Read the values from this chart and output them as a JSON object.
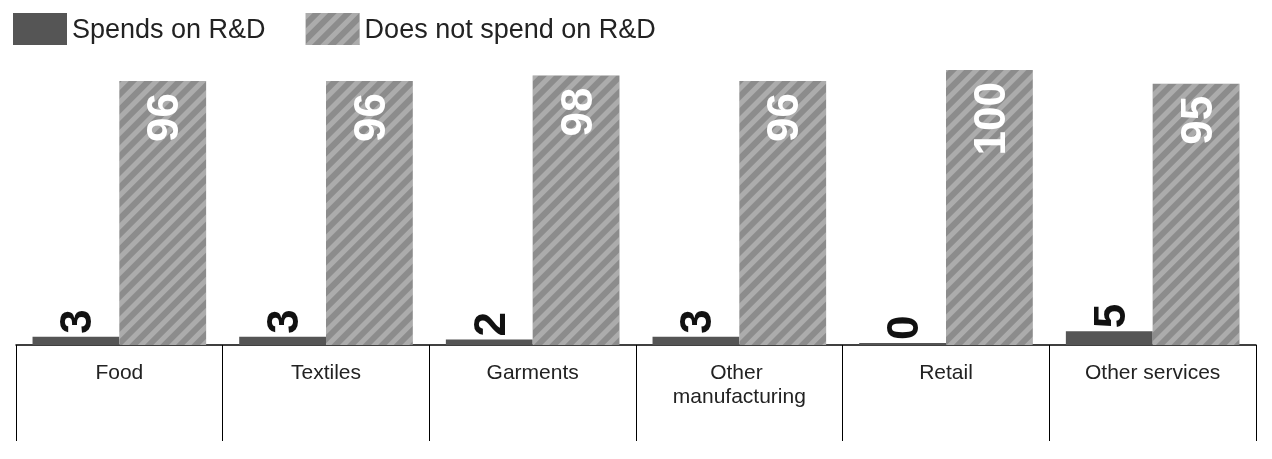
{
  "chart_data": {
    "type": "bar",
    "categories": [
      "Food",
      "Textiles",
      "Garments",
      "Other manufacturing",
      "Retail",
      "Other services"
    ],
    "series": [
      {
        "name": "Spends on R&D",
        "color": "#555555",
        "values": [
          3,
          3,
          2,
          3,
          0,
          5
        ]
      },
      {
        "name": "Does not spend on R&D",
        "color": "#8c8c8c",
        "values": [
          96,
          96,
          98,
          96,
          100,
          95
        ]
      }
    ],
    "data_labels": true,
    "legend": "top left",
    "grid": false
  }
}
